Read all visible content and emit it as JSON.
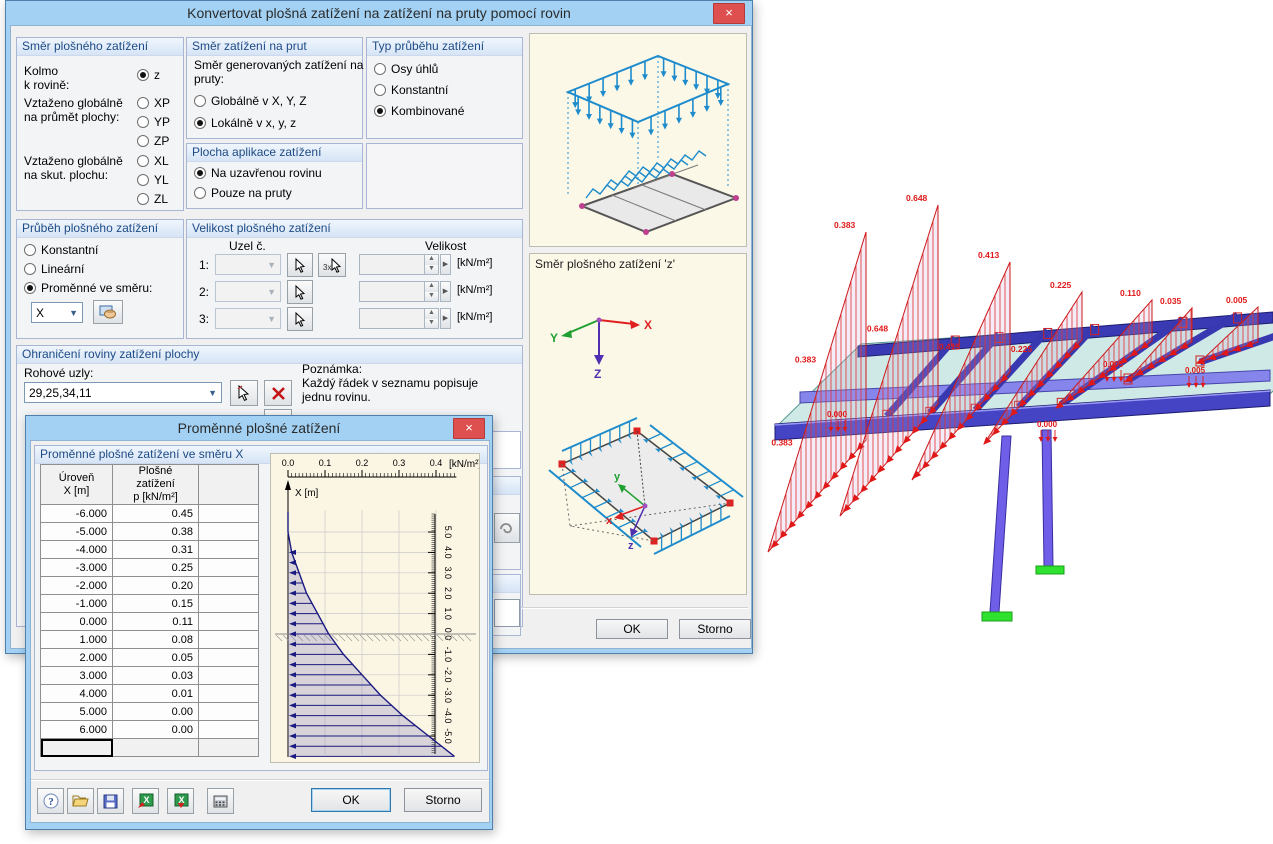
{
  "main_dialog": {
    "title": "Konvertovat plošná zatížení na zatížení na pruty pomocí rovin",
    "close_glyph": "×",
    "ok": "OK",
    "storno": "Storno",
    "groups": {
      "smer": {
        "title": "Směr plošného zatížení",
        "kolmo1": "Kolmo",
        "kolmo2": "k rovině:",
        "prumet1": "Vztaženo globálně",
        "prumet2": "na průmět plochy:",
        "skut1": "Vztaženo globálně",
        "skut2": "na skut. plochu:",
        "z_opts": [
          {
            "label": "z",
            "on": true
          }
        ],
        "prumet_opts": [
          {
            "label": "XP",
            "on": false
          },
          {
            "label": "YP",
            "on": false
          },
          {
            "label": "ZP",
            "on": false
          }
        ],
        "skut_opts": [
          {
            "label": "XL",
            "on": false
          },
          {
            "label": "YL",
            "on": false
          },
          {
            "label": "ZL",
            "on": false
          }
        ]
      },
      "prubeh": {
        "title": "Průběh plošného zatížení",
        "opts": [
          {
            "label": "Konstantní",
            "on": false
          },
          {
            "label": "Lineární",
            "on": false
          },
          {
            "label": "Proměnné ve směru:",
            "on": true
          }
        ],
        "combo_value": "X"
      },
      "ohran": {
        "title": "Ohraničení roviny zatížení plochy",
        "rohove": "Rohové uzly:",
        "combo_value": "29,25,34,11",
        "note1": "Poznámka:",
        "note2": "Každý řádek v seznamu popisuje",
        "note3": "jednu rovinu."
      },
      "smernaprut": {
        "title": "Směr zatížení na prut",
        "desc1": "Směr generovaných zatížení na",
        "desc2": "pruty:",
        "opts": [
          {
            "label": "Globálně v X, Y, Z",
            "on": false
          },
          {
            "label": "Lokálně v x, y, z",
            "on": true
          }
        ]
      },
      "plocha": {
        "title": "Plocha aplikace zatížení",
        "opts": [
          {
            "label": "Na uzavřenou rovinu",
            "on": true
          },
          {
            "label": "Pouze na pruty",
            "on": false
          }
        ]
      },
      "typ": {
        "title": "Typ průběhu zatížení",
        "opts": [
          {
            "label": "Osy úhlů",
            "on": false
          },
          {
            "label": "Konstantní",
            "on": false
          },
          {
            "label": "Kombinované",
            "on": true
          }
        ]
      },
      "velikost": {
        "title": "Velikost plošného zatížení",
        "col1": "Uzel č.",
        "col2": "Velikost",
        "rows": [
          "1:",
          "2:",
          "3:"
        ],
        "unit": "[kN/m²]",
        "pick3_label": "3x"
      }
    },
    "right_panel": {
      "caption": "Směr plošného zatížení 'z'",
      "axes": {
        "x": "X",
        "y": "Y",
        "z": "Z"
      },
      "plate_axes": {
        "x": "x",
        "y": "y",
        "z": "z"
      }
    }
  },
  "secondary_dialog": {
    "title": "Proměnné plošné zatížení",
    "close_glyph": "×",
    "group_title": "Proměnné plošné zatížení ve směru X",
    "table": {
      "h1a": "Úroveň",
      "h1b": "X [m]",
      "h2a": "Plošné zatížení",
      "h2b": "p [kN/m²]",
      "rows": [
        [
          "-6.000",
          "0.45"
        ],
        [
          "-5.000",
          "0.38"
        ],
        [
          "-4.000",
          "0.31"
        ],
        [
          "-3.000",
          "0.25"
        ],
        [
          "-2.000",
          "0.20"
        ],
        [
          "-1.000",
          "0.15"
        ],
        [
          "0.000",
          "0.11"
        ],
        [
          "1.000",
          "0.08"
        ],
        [
          "2.000",
          "0.05"
        ],
        [
          "3.000",
          "0.03"
        ],
        [
          "4.000",
          "0.01"
        ],
        [
          "5.000",
          "0.00"
        ],
        [
          "6.000",
          "0.00"
        ]
      ]
    },
    "toolbar_icons": [
      "help",
      "open",
      "save",
      "excel-import",
      "excel-export",
      "calculator"
    ],
    "ok": "OK",
    "storno": "Storno"
  },
  "chart_data": {
    "type": "area",
    "title": "Proměnné plošné zatížení ve směru X",
    "xlabel": "[kN/m²]",
    "ylabel": "X [m]",
    "x_tick_labels": [
      "0.0",
      "0.1",
      "0.2",
      "0.3",
      "0.4"
    ],
    "x_ticks": [
      0.0,
      0.1,
      0.2,
      0.3,
      0.4
    ],
    "xlim": [
      0,
      0.475
    ],
    "ylim": [
      -6,
      6
    ],
    "y_tick_labels": [
      "5.0",
      "4.0",
      "3.0",
      "2.0",
      "1.0",
      "0.0",
      "-1.0",
      "-2.0",
      "-3.0",
      "-4.0",
      "-5.0"
    ],
    "y_ticks": [
      5,
      4,
      3,
      2,
      1,
      0,
      -1,
      -2,
      -3,
      -4,
      -5
    ],
    "ground_level": 0.0,
    "levels_x_m": [
      -6,
      -5,
      -4,
      -3,
      -2,
      -1,
      0,
      1,
      2,
      3,
      4,
      5,
      6
    ],
    "values_kn_m2": [
      0.45,
      0.38,
      0.31,
      0.25,
      0.2,
      0.15,
      0.11,
      0.08,
      0.05,
      0.03,
      0.01,
      0.0,
      0.0
    ],
    "grid": true,
    "legend": "none"
  },
  "scene_3d": {
    "purlin_load_labels": [
      "0.383",
      "0.648",
      "0.413",
      "0.225",
      "0.110",
      "0.035",
      "0.005"
    ],
    "edge_load_labels": [
      "0.005",
      "0.005",
      "0.000",
      "0.000"
    ],
    "colors": {
      "load": "#e01818",
      "beam": "#4444c4",
      "beam_light": "#8585ec",
      "plane": "#a8d8d2",
      "column": "#6f5fe8",
      "support": "#2fe22f"
    }
  }
}
